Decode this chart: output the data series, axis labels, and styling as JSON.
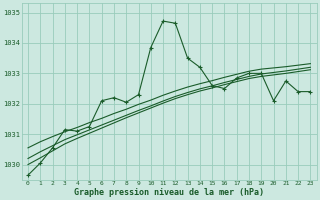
{
  "xlabel": "Graphe pression niveau de la mer (hPa)",
  "bg_color": "#cce8e0",
  "grid_color": "#99ccbb",
  "line_color": "#1a5c2a",
  "x_ticks": [
    0,
    1,
    2,
    3,
    4,
    5,
    6,
    7,
    8,
    9,
    10,
    11,
    12,
    13,
    14,
    15,
    16,
    17,
    18,
    19,
    20,
    21,
    22,
    23
  ],
  "ylim": [
    1029.5,
    1035.3
  ],
  "yticks": [
    1030,
    1031,
    1032,
    1033,
    1034,
    1035
  ],
  "series1_x": [
    0,
    1,
    2,
    3,
    4,
    5,
    6,
    7,
    8,
    9,
    10,
    11,
    12,
    13,
    14,
    15,
    16,
    17,
    18,
    19,
    20,
    21,
    22,
    23
  ],
  "series1_y": [
    1029.65,
    1030.05,
    1030.55,
    1031.15,
    1031.1,
    1031.25,
    1032.1,
    1032.2,
    1032.05,
    1032.3,
    1033.85,
    1034.72,
    1034.65,
    1033.5,
    1033.2,
    1032.6,
    1032.5,
    1032.85,
    1033.0,
    1033.0,
    1032.1,
    1032.75,
    1032.4,
    1032.4
  ],
  "series2_x": [
    0,
    1,
    2,
    3,
    4,
    5,
    6,
    7,
    8,
    9,
    10,
    11,
    12,
    13,
    14,
    15,
    16,
    17,
    18,
    19,
    20,
    21,
    22,
    23
  ],
  "series2_y": [
    1030.55,
    1030.75,
    1030.92,
    1031.08,
    1031.22,
    1031.38,
    1031.52,
    1031.68,
    1031.82,
    1031.98,
    1032.12,
    1032.28,
    1032.42,
    1032.55,
    1032.66,
    1032.76,
    1032.87,
    1032.97,
    1033.07,
    1033.14,
    1033.18,
    1033.22,
    1033.27,
    1033.32
  ],
  "series3_x": [
    0,
    1,
    2,
    3,
    4,
    5,
    6,
    7,
    8,
    9,
    10,
    11,
    12,
    13,
    14,
    15,
    16,
    17,
    18,
    19,
    20,
    21,
    22,
    23
  ],
  "series3_y": [
    1030.2,
    1030.42,
    1030.62,
    1030.82,
    1030.98,
    1031.14,
    1031.3,
    1031.46,
    1031.62,
    1031.78,
    1031.93,
    1032.09,
    1032.24,
    1032.37,
    1032.49,
    1032.59,
    1032.7,
    1032.8,
    1032.9,
    1032.98,
    1033.03,
    1033.08,
    1033.14,
    1033.2
  ],
  "series4_x": [
    0,
    1,
    2,
    3,
    4,
    5,
    6,
    7,
    8,
    9,
    10,
    11,
    12,
    13,
    14,
    15,
    16,
    17,
    18,
    19,
    20,
    21,
    22,
    23
  ],
  "series4_y": [
    1030.0,
    1030.22,
    1030.45,
    1030.68,
    1030.86,
    1031.03,
    1031.2,
    1031.37,
    1031.54,
    1031.7,
    1031.86,
    1032.02,
    1032.17,
    1032.3,
    1032.42,
    1032.52,
    1032.63,
    1032.73,
    1032.83,
    1032.9,
    1032.95,
    1033.0,
    1033.06,
    1033.12
  ]
}
